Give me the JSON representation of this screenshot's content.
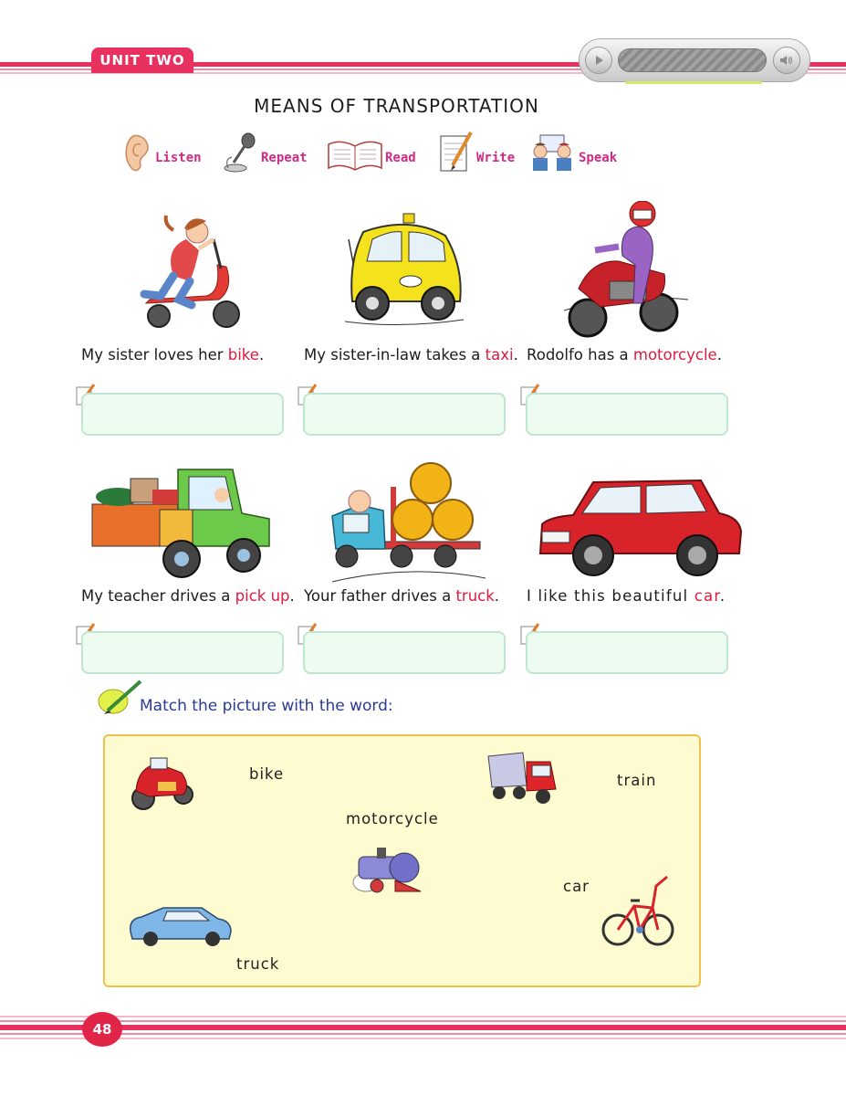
{
  "header": {
    "unit_label": "UNIT TWO",
    "accent_color": "#e8315f",
    "player": {
      "play_icon": "play-icon",
      "volume_icon": "volume-icon"
    }
  },
  "title": "MEANS OF TRANSPORTATION",
  "skills": [
    {
      "label": "Listen",
      "icon": "ear-icon"
    },
    {
      "label": "Repeat",
      "icon": "microphone-icon"
    },
    {
      "label": "Read",
      "icon": "book-icon"
    },
    {
      "label": "Write",
      "icon": "pencil-paper-icon"
    },
    {
      "label": "Speak",
      "icon": "people-talking-icon"
    }
  ],
  "cards": [
    {
      "before": "My sister loves her ",
      "keyword": "bike",
      "after": ".",
      "image": "girl-on-scooter"
    },
    {
      "before": "My sister-in-law takes a ",
      "keyword": "taxi",
      "after": ".",
      "image": "yellow-taxi"
    },
    {
      "before": "Rodolfo has a ",
      "keyword": "motorcycle",
      "after": ".",
      "image": "motorcycle-rider"
    },
    {
      "before": "My teacher drives a ",
      "keyword": "pick up",
      "after": ".",
      "image": "pickup-truck"
    },
    {
      "before": "Your father drives a ",
      "keyword": "truck",
      "after": ".",
      "image": "log-truck"
    },
    {
      "before": "I like this beautiful ",
      "keyword": "car",
      "after": ".",
      "image": "red-suv"
    }
  ],
  "instruction": "Match the picture with the word:",
  "match_words": {
    "w1": "bike",
    "w2": "motorcycle",
    "w3": "train",
    "w4": "car",
    "w5": "truck"
  },
  "page_number": "48"
}
